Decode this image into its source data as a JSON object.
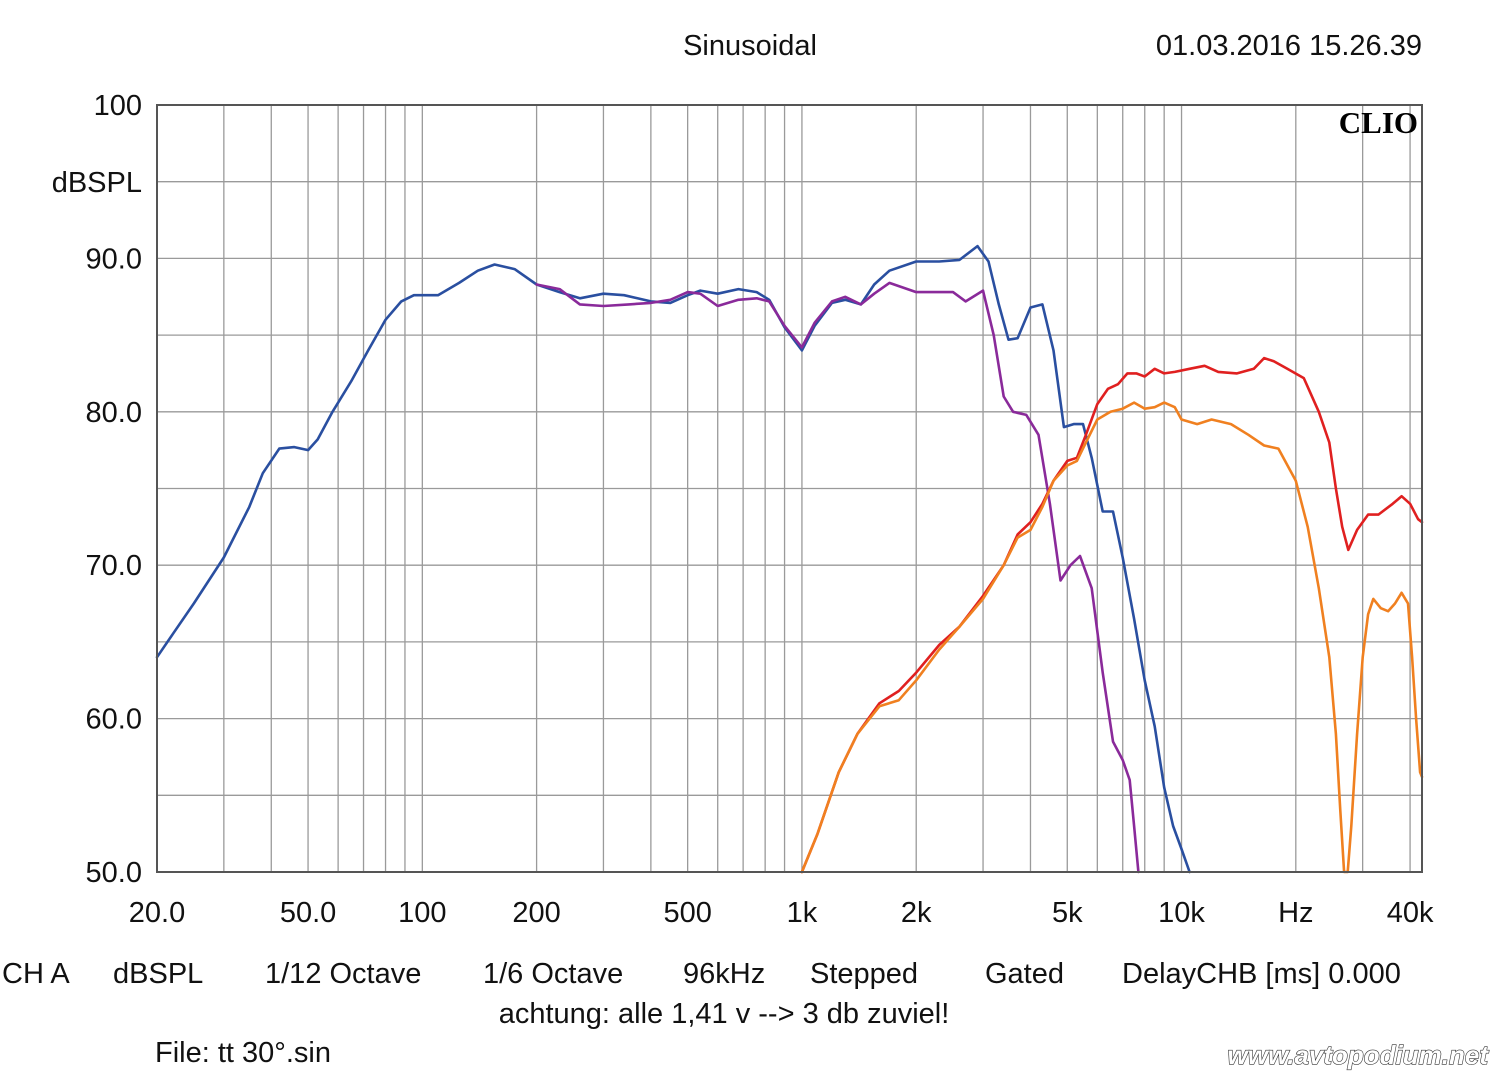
{
  "header": {
    "mode": "Sinusoidal",
    "datetime": "01.03.2016 15.26.39"
  },
  "logo": "CLIO",
  "footer": {
    "info": [
      "CH A",
      "dBSPL",
      "1/12 Octave",
      "1/6 Octave",
      "96kHz",
      "Stepped",
      "Gated",
      "DelayCHB [ms] 0.000"
    ],
    "note": "achtung: alle 1,41 v --> 3 db zuviel!",
    "file": "File: tt 30°.sin",
    "watermark": "www.avtopodium.net"
  },
  "colors": {
    "background": "#ffffff",
    "grid": "#9a9a9a",
    "frame": "#555555",
    "series": [
      "#2a4fa0",
      "#8a2a9a",
      "#e02020",
      "#f08020"
    ]
  },
  "chart_data": {
    "type": "line",
    "x_scale": "log",
    "xlim": [
      20,
      43000
    ],
    "ylim": [
      50,
      100
    ],
    "grid": true,
    "ylabel": "dBSPL",
    "x_ticks": [
      {
        "value": 20,
        "label": "20.0"
      },
      {
        "value": 50,
        "label": "50.0"
      },
      {
        "value": 100,
        "label": "100"
      },
      {
        "value": 200,
        "label": "200"
      },
      {
        "value": 500,
        "label": "500"
      },
      {
        "value": 1000,
        "label": "1k"
      },
      {
        "value": 2000,
        "label": "2k"
      },
      {
        "value": 5000,
        "label": "5k"
      },
      {
        "value": 10000,
        "label": "10k"
      },
      {
        "value": 20000,
        "label": "Hz"
      },
      {
        "value": 40000,
        "label": "40k"
      }
    ],
    "y_ticks": [
      {
        "value": 100,
        "label": "100"
      },
      {
        "value": 90,
        "label": "90.0"
      },
      {
        "value": 80,
        "label": "80.0"
      },
      {
        "value": 70,
        "label": "70.0"
      },
      {
        "value": 60,
        "label": "60.0"
      },
      {
        "value": 50,
        "label": "50.0"
      }
    ],
    "series": [
      {
        "color": "#2a4fa0",
        "points": [
          [
            20,
            64.0
          ],
          [
            22,
            65.5
          ],
          [
            25,
            67.5
          ],
          [
            30,
            70.5
          ],
          [
            35,
            73.8
          ],
          [
            38,
            76.0
          ],
          [
            42,
            77.6
          ],
          [
            46,
            77.7
          ],
          [
            50,
            77.5
          ],
          [
            53,
            78.2
          ],
          [
            58,
            80.0
          ],
          [
            65,
            82.0
          ],
          [
            72,
            84.0
          ],
          [
            80,
            86.0
          ],
          [
            88,
            87.2
          ],
          [
            95,
            87.6
          ],
          [
            110,
            87.6
          ],
          [
            125,
            88.4
          ],
          [
            140,
            89.2
          ],
          [
            155,
            89.6
          ],
          [
            175,
            89.3
          ],
          [
            200,
            88.3
          ],
          [
            230,
            87.8
          ],
          [
            260,
            87.4
          ],
          [
            300,
            87.7
          ],
          [
            340,
            87.6
          ],
          [
            400,
            87.2
          ],
          [
            450,
            87.1
          ],
          [
            500,
            87.6
          ],
          [
            540,
            87.9
          ],
          [
            600,
            87.7
          ],
          [
            680,
            88.0
          ],
          [
            760,
            87.8
          ],
          [
            820,
            87.3
          ],
          [
            900,
            85.5
          ],
          [
            1000,
            84.0
          ],
          [
            1080,
            85.6
          ],
          [
            1200,
            87.1
          ],
          [
            1300,
            87.3
          ],
          [
            1430,
            87.0
          ],
          [
            1550,
            88.3
          ],
          [
            1700,
            89.2
          ],
          [
            2000,
            89.8
          ],
          [
            2300,
            89.8
          ],
          [
            2600,
            89.9
          ],
          [
            2900,
            90.8
          ],
          [
            3100,
            89.8
          ],
          [
            3300,
            87.0
          ],
          [
            3500,
            84.7
          ],
          [
            3700,
            84.8
          ],
          [
            4000,
            86.8
          ],
          [
            4300,
            87.0
          ],
          [
            4600,
            84.0
          ],
          [
            4900,
            79.0
          ],
          [
            5200,
            79.2
          ],
          [
            5500,
            79.2
          ],
          [
            5800,
            77.0
          ],
          [
            6200,
            73.5
          ],
          [
            6600,
            73.5
          ],
          [
            7000,
            70.5
          ],
          [
            7500,
            66.5
          ],
          [
            8000,
            62.5
          ],
          [
            8500,
            59.5
          ],
          [
            9000,
            55.5
          ],
          [
            9500,
            53.0
          ],
          [
            10000,
            51.5
          ],
          [
            10500,
            50.0
          ]
        ]
      },
      {
        "color": "#8a2a9a",
        "points": [
          [
            200,
            88.3
          ],
          [
            230,
            88.0
          ],
          [
            260,
            87.0
          ],
          [
            300,
            86.9
          ],
          [
            350,
            87.0
          ],
          [
            400,
            87.1
          ],
          [
            450,
            87.3
          ],
          [
            500,
            87.8
          ],
          [
            540,
            87.7
          ],
          [
            600,
            86.9
          ],
          [
            680,
            87.3
          ],
          [
            760,
            87.4
          ],
          [
            820,
            87.2
          ],
          [
            900,
            85.6
          ],
          [
            1000,
            84.2
          ],
          [
            1080,
            85.8
          ],
          [
            1200,
            87.2
          ],
          [
            1300,
            87.5
          ],
          [
            1430,
            87.0
          ],
          [
            1550,
            87.7
          ],
          [
            1700,
            88.4
          ],
          [
            2000,
            87.8
          ],
          [
            2300,
            87.8
          ],
          [
            2500,
            87.8
          ],
          [
            2700,
            87.2
          ],
          [
            3000,
            87.9
          ],
          [
            3200,
            85.0
          ],
          [
            3400,
            81.0
          ],
          [
            3600,
            80.0
          ],
          [
            3900,
            79.8
          ],
          [
            4200,
            78.5
          ],
          [
            4500,
            74.0
          ],
          [
            4800,
            69.0
          ],
          [
            5100,
            70.0
          ],
          [
            5400,
            70.6
          ],
          [
            5800,
            68.5
          ],
          [
            6200,
            63.0
          ],
          [
            6600,
            58.5
          ],
          [
            7000,
            57.3
          ],
          [
            7300,
            56.0
          ],
          [
            7500,
            53.0
          ],
          [
            7700,
            50.0
          ]
        ]
      },
      {
        "color": "#e02020",
        "points": [
          [
            1000,
            50.0
          ],
          [
            1100,
            52.5
          ],
          [
            1250,
            56.5
          ],
          [
            1400,
            59.0
          ],
          [
            1600,
            61.0
          ],
          [
            1800,
            61.8
          ],
          [
            2000,
            63.0
          ],
          [
            2300,
            64.8
          ],
          [
            2600,
            66.0
          ],
          [
            3000,
            68.0
          ],
          [
            3400,
            70.0
          ],
          [
            3700,
            72.0
          ],
          [
            4000,
            72.8
          ],
          [
            4300,
            74.0
          ],
          [
            4600,
            75.5
          ],
          [
            5000,
            76.8
          ],
          [
            5300,
            77.0
          ],
          [
            5600,
            78.5
          ],
          [
            6000,
            80.5
          ],
          [
            6400,
            81.5
          ],
          [
            6800,
            81.8
          ],
          [
            7200,
            82.5
          ],
          [
            7600,
            82.5
          ],
          [
            8000,
            82.3
          ],
          [
            8500,
            82.8
          ],
          [
            9000,
            82.5
          ],
          [
            9600,
            82.6
          ],
          [
            10500,
            82.8
          ],
          [
            11500,
            83.0
          ],
          [
            12500,
            82.6
          ],
          [
            14000,
            82.5
          ],
          [
            15500,
            82.8
          ],
          [
            16500,
            83.5
          ],
          [
            17500,
            83.3
          ],
          [
            19000,
            82.8
          ],
          [
            21000,
            82.2
          ],
          [
            23000,
            80.0
          ],
          [
            24500,
            78.0
          ],
          [
            25500,
            75.0
          ],
          [
            26500,
            72.5
          ],
          [
            27500,
            71.0
          ],
          [
            29000,
            72.3
          ],
          [
            31000,
            73.3
          ],
          [
            33000,
            73.3
          ],
          [
            36000,
            74.0
          ],
          [
            38000,
            74.5
          ],
          [
            40000,
            74.0
          ],
          [
            42000,
            73.0
          ],
          [
            43000,
            72.8
          ]
        ]
      },
      {
        "color": "#f08020",
        "points": [
          [
            1000,
            50.0
          ],
          [
            1100,
            52.5
          ],
          [
            1250,
            56.5
          ],
          [
            1400,
            59.0
          ],
          [
            1600,
            60.8
          ],
          [
            1800,
            61.2
          ],
          [
            2000,
            62.5
          ],
          [
            2300,
            64.5
          ],
          [
            2600,
            66.0
          ],
          [
            3000,
            67.8
          ],
          [
            3400,
            70.0
          ],
          [
            3700,
            71.8
          ],
          [
            4000,
            72.3
          ],
          [
            4300,
            73.8
          ],
          [
            4600,
            75.5
          ],
          [
            5000,
            76.5
          ],
          [
            5300,
            76.8
          ],
          [
            5600,
            78.0
          ],
          [
            6000,
            79.5
          ],
          [
            6500,
            80.0
          ],
          [
            7000,
            80.2
          ],
          [
            7500,
            80.6
          ],
          [
            8000,
            80.2
          ],
          [
            8500,
            80.3
          ],
          [
            9000,
            80.6
          ],
          [
            9600,
            80.3
          ],
          [
            10000,
            79.5
          ],
          [
            11000,
            79.2
          ],
          [
            12000,
            79.5
          ],
          [
            13500,
            79.2
          ],
          [
            15000,
            78.5
          ],
          [
            16500,
            77.8
          ],
          [
            18000,
            77.6
          ],
          [
            20000,
            75.5
          ],
          [
            21500,
            72.5
          ],
          [
            23000,
            68.5
          ],
          [
            24500,
            64.0
          ],
          [
            25500,
            59.0
          ],
          [
            26200,
            54.0
          ],
          [
            26800,
            50.0
          ],
          [
            27400,
            50.0
          ],
          [
            28000,
            53.0
          ],
          [
            29000,
            59.0
          ],
          [
            30000,
            64.0
          ],
          [
            31000,
            66.8
          ],
          [
            32000,
            67.8
          ],
          [
            33500,
            67.2
          ],
          [
            35000,
            67.0
          ],
          [
            36500,
            67.5
          ],
          [
            38000,
            68.2
          ],
          [
            39500,
            67.5
          ],
          [
            40500,
            64.0
          ],
          [
            41500,
            60.0
          ],
          [
            42500,
            56.5
          ],
          [
            43000,
            56.2
          ]
        ]
      }
    ]
  }
}
